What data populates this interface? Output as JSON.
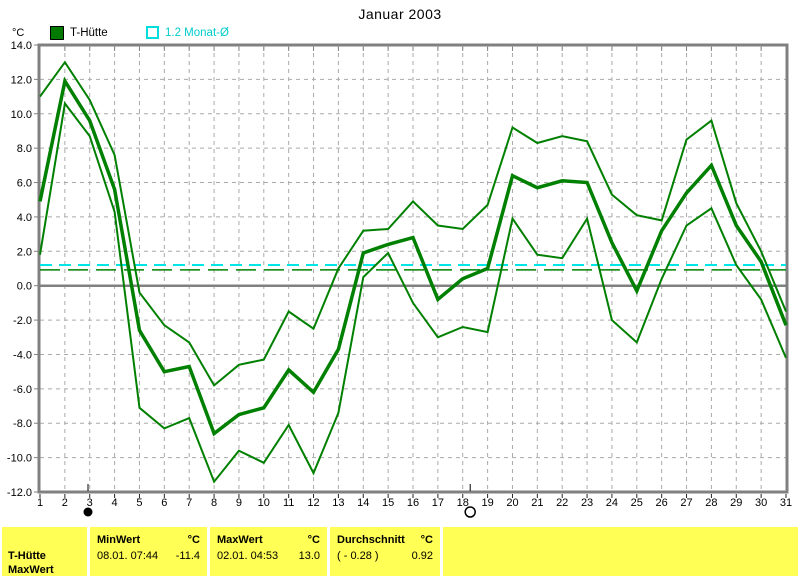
{
  "title": "Januar 2003",
  "y_axis_unit": "°C",
  "legend": {
    "series1": {
      "label": "T-Hütte",
      "swatch_color": "#007a00"
    },
    "series2": {
      "label": "1.2 Monat-Ø",
      "color": "#00dddd"
    }
  },
  "chart_data": {
    "type": "line",
    "title": "Januar 2003",
    "ylabel": "°C",
    "ylim": [
      -12,
      14
    ],
    "grid": true,
    "x": [
      1,
      2,
      3,
      4,
      5,
      6,
      7,
      8,
      9,
      10,
      11,
      12,
      13,
      14,
      15,
      16,
      17,
      18,
      19,
      20,
      21,
      22,
      23,
      24,
      25,
      26,
      27,
      28,
      29,
      30,
      31
    ],
    "x_tick_labels": [
      "1",
      "2",
      "3",
      "4",
      "5",
      "6",
      "7",
      "8",
      "9",
      "10",
      "11",
      "12",
      "13",
      "14",
      "15",
      "16",
      "17",
      "18",
      "19",
      "20",
      "21",
      "22",
      "23",
      "24",
      "25",
      "26",
      "27",
      "28",
      "29",
      "30",
      "31"
    ],
    "y_ticks": [
      14,
      12,
      10,
      8,
      6,
      4,
      2,
      0,
      -2,
      -4,
      -6,
      -8,
      -10,
      -12
    ],
    "y_tick_labels": [
      "14.0",
      "12.0",
      "10.0",
      "8.0",
      "6.0",
      "4.0",
      "2.0",
      "0.0",
      "-2.0",
      "-4.0",
      "-6.0",
      "-8.0",
      "-10.0",
      "-12.0"
    ],
    "series": [
      {
        "name": "daily-max",
        "style": "thin",
        "color": "#008000",
        "values": [
          11.0,
          13.0,
          10.8,
          7.6,
          -0.4,
          -2.3,
          -3.3,
          -5.8,
          -4.6,
          -4.3,
          -1.5,
          -2.5,
          1.0,
          3.2,
          3.3,
          4.9,
          3.5,
          3.3,
          4.7,
          9.2,
          8.3,
          8.7,
          8.4,
          5.3,
          4.1,
          3.8,
          8.5,
          9.6,
          4.8,
          2.0,
          -1.5
        ]
      },
      {
        "name": "daily-mean",
        "style": "thick",
        "color": "#008000",
        "values": [
          4.9,
          11.9,
          9.6,
          5.6,
          -2.6,
          -5.0,
          -4.7,
          -8.6,
          -7.5,
          -7.1,
          -4.9,
          -6.2,
          -3.7,
          1.9,
          2.4,
          2.8,
          -0.8,
          0.4,
          1.0,
          6.4,
          5.7,
          6.1,
          6.0,
          2.5,
          -0.3,
          3.2,
          5.4,
          7.0,
          3.5,
          1.4,
          -2.3
        ]
      },
      {
        "name": "daily-min",
        "style": "thin",
        "color": "#008000",
        "values": [
          1.8,
          10.6,
          8.7,
          4.3,
          -7.1,
          -8.3,
          -7.7,
          -11.4,
          -9.6,
          -10.3,
          -8.1,
          -10.9,
          -7.4,
          0.5,
          1.9,
          -1.0,
          -3.0,
          -2.4,
          -2.7,
          3.9,
          1.8,
          1.6,
          3.9,
          -2.0,
          -3.3,
          0.4,
          3.5,
          4.5,
          1.2,
          -0.8,
          -4.2
        ]
      }
    ],
    "reference_lines": [
      {
        "name": "monats-mittel-1.2",
        "value": 1.2,
        "color": "#00e6e6",
        "dash": "12 7",
        "width": 2
      },
      {
        "name": "durchschnitt-0.92",
        "value": 0.92,
        "color": "#008000",
        "dash": "20 8",
        "width": 1.5
      }
    ],
    "moon_markers": [
      {
        "x": 2.93,
        "phase": "new"
      },
      {
        "x": 18.3,
        "phase": "full"
      }
    ],
    "legend_entries": [
      "T-Hütte",
      "1.2 Monat-Ø"
    ]
  },
  "status_bar": {
    "station": {
      "line1": "T-Hütte",
      "line2": "MaxWert"
    },
    "min": {
      "header": "MinWert",
      "unit": "°C",
      "datetime": "08.01.  07:44",
      "value": "-11.4"
    },
    "max": {
      "header": "MaxWert",
      "unit": "°C",
      "datetime": "02.01.  04:53",
      "value": "13.0"
    },
    "avg": {
      "header": "Durchschnitt",
      "unit": "°C",
      "datetime": "( - 0.28 )",
      "value": "0.92"
    }
  }
}
